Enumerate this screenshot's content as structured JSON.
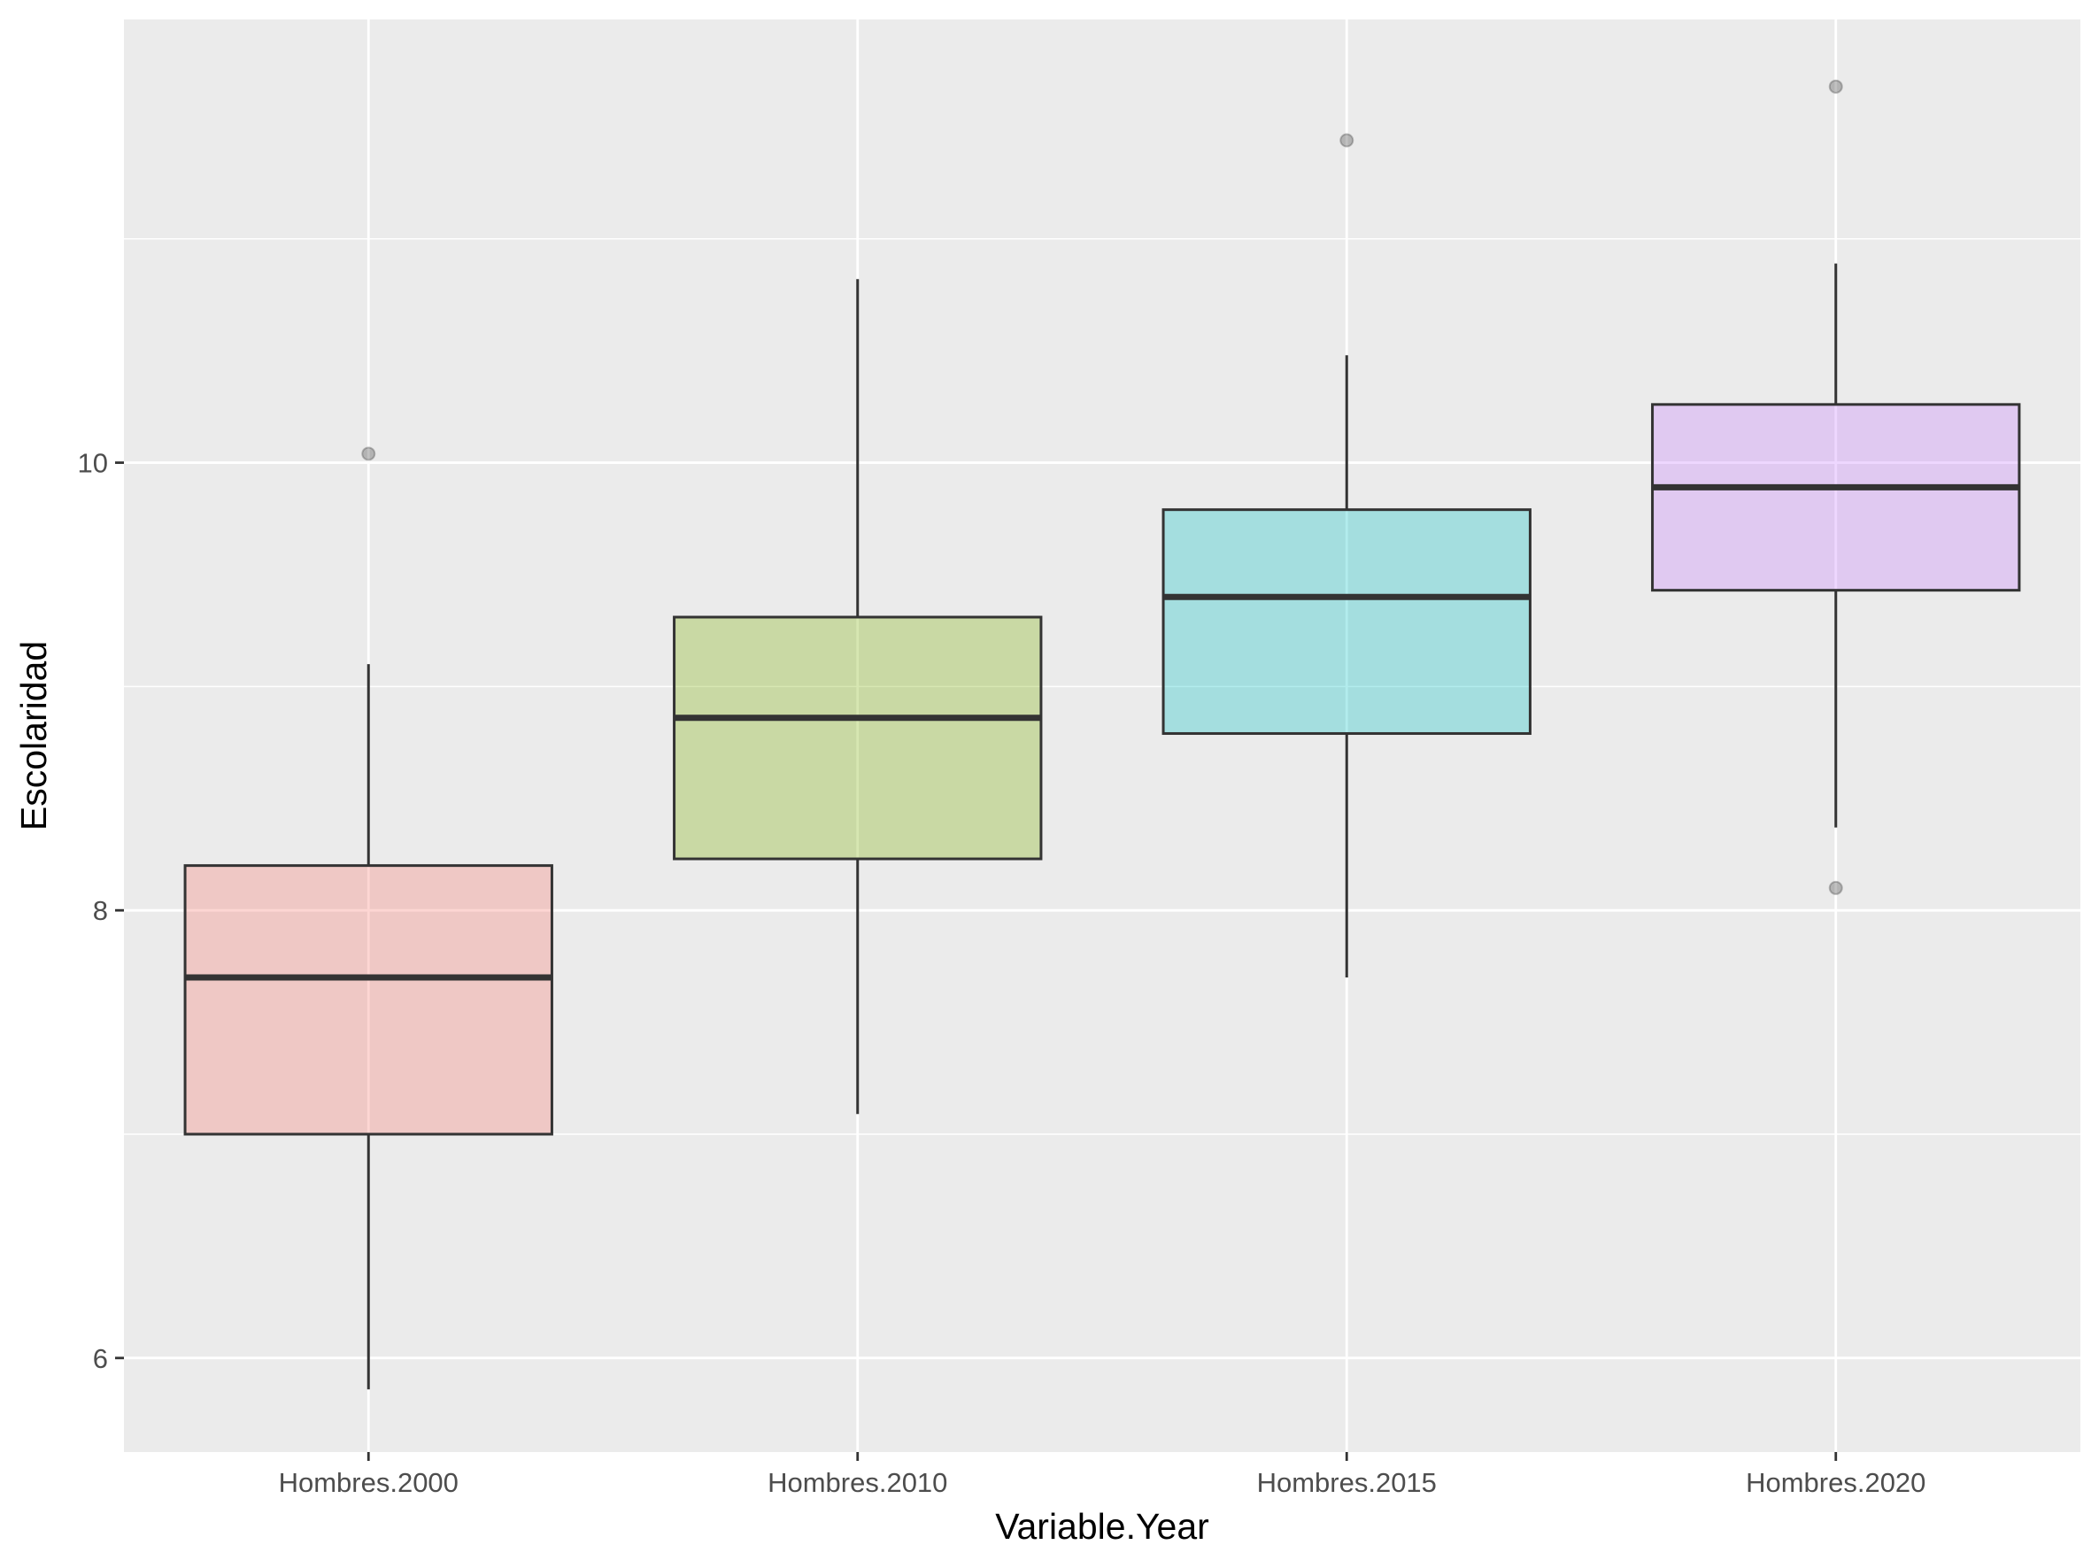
{
  "chart_data": {
    "type": "boxplot",
    "xlabel": "Variable.Year",
    "ylabel": "Escolaridad",
    "ylim": [
      5.58,
      11.98
    ],
    "yticks": [
      6,
      8,
      10
    ],
    "grid": true,
    "categories": [
      "Hombres.2000",
      "Hombres.2010",
      "Hombres.2015",
      "Hombres.2020"
    ],
    "boxes": [
      {
        "category": "Hombres.2000",
        "lower_whisker": 5.86,
        "q1": 7.0,
        "median": 7.7,
        "q3": 8.2,
        "upper_whisker": 9.1,
        "outliers": [
          10.04
        ],
        "fill": "#F8766D"
      },
      {
        "category": "Hombres.2010",
        "lower_whisker": 7.09,
        "q1": 8.23,
        "median": 8.86,
        "q3": 9.31,
        "upper_whisker": 10.82,
        "outliers": [],
        "fill": "#7CAE00"
      },
      {
        "category": "Hombres.2015",
        "lower_whisker": 7.7,
        "q1": 8.79,
        "median": 9.4,
        "q3": 9.79,
        "upper_whisker": 10.48,
        "outliers": [
          11.44
        ],
        "fill": "#00BFC4"
      },
      {
        "category": "Hombres.2020",
        "lower_whisker": 8.37,
        "q1": 9.43,
        "median": 9.89,
        "q3": 10.26,
        "upper_whisker": 10.89,
        "outliers": [
          11.68,
          8.1
        ],
        "fill": "#C77CFF"
      }
    ]
  }
}
